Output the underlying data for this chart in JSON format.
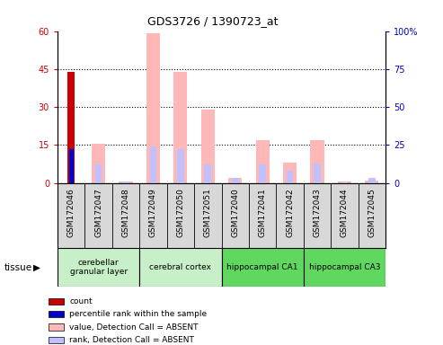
{
  "title": "GDS3726 / 1390723_at",
  "samples": [
    "GSM172046",
    "GSM172047",
    "GSM172048",
    "GSM172049",
    "GSM172050",
    "GSM172051",
    "GSM172040",
    "GSM172041",
    "GSM172042",
    "GSM172043",
    "GSM172044",
    "GSM172045"
  ],
  "count_values": [
    44,
    0,
    0,
    0,
    0,
    0,
    0,
    0,
    0,
    0,
    0,
    0
  ],
  "percentile_rank_values": [
    22,
    0,
    0,
    0,
    0,
    0,
    0,
    0,
    0,
    0,
    0,
    0
  ],
  "absent_value_values": [
    0,
    15.5,
    0.5,
    59,
    44,
    29,
    2,
    17,
    8,
    17,
    0.5,
    1
  ],
  "absent_rank_values": [
    0,
    12,
    1,
    24,
    22,
    12,
    3,
    12,
    8,
    13,
    0.5,
    3
  ],
  "tissue_groups": [
    {
      "label": "cerebellar\ngranular layer",
      "start": 0,
      "end": 3,
      "color": "#c8f0c8"
    },
    {
      "label": "cerebral cortex",
      "start": 3,
      "end": 6,
      "color": "#c8f0c8"
    },
    {
      "label": "hippocampal CA1",
      "start": 6,
      "end": 9,
      "color": "#60d860"
    },
    {
      "label": "hippocampal CA3",
      "start": 9,
      "end": 12,
      "color": "#60d860"
    }
  ],
  "ylim_left": [
    0,
    60
  ],
  "ylim_right": [
    0,
    100
  ],
  "yticks_left": [
    0,
    15,
    30,
    45,
    60
  ],
  "ytick_labels_left": [
    "0",
    "15",
    "30",
    "45",
    "60"
  ],
  "ytick_labels_right": [
    "0",
    "25",
    "50",
    "75",
    "100%"
  ],
  "color_count": "#cc0000",
  "color_rank": "#0000cc",
  "color_absent_value": "#ffb8b8",
  "color_absent_rank": "#c0c0ff",
  "tissue_label": "tissue",
  "legend_items": [
    {
      "label": "count",
      "color": "#cc0000"
    },
    {
      "label": "percentile rank within the sample",
      "color": "#0000cc"
    },
    {
      "label": "value, Detection Call = ABSENT",
      "color": "#ffb8b8"
    },
    {
      "label": "rank, Detection Call = ABSENT",
      "color": "#c0c0ff"
    }
  ]
}
